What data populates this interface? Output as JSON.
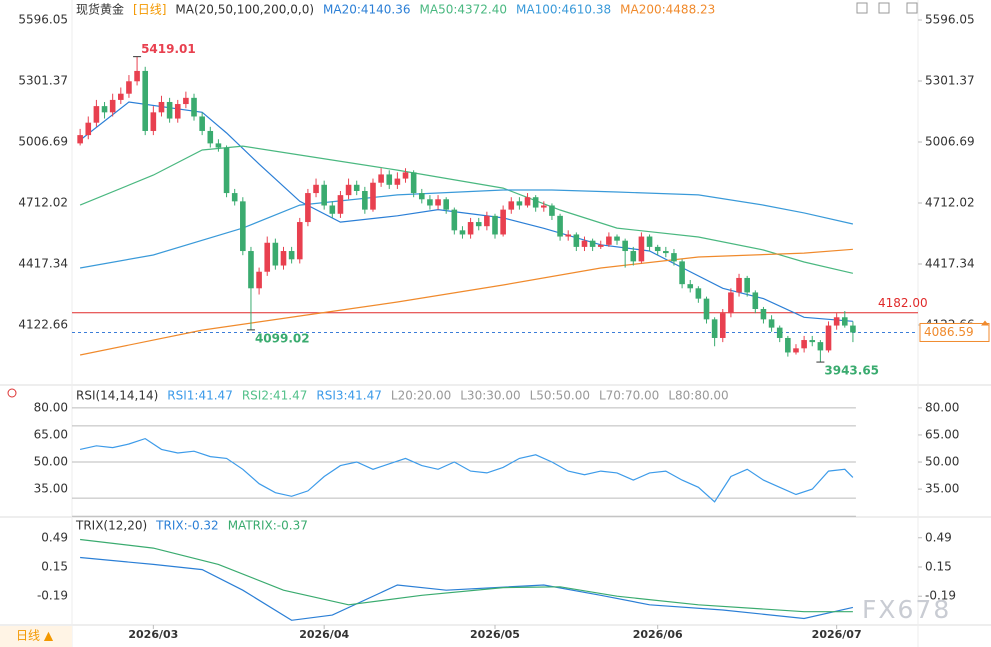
{
  "chart_data": [
    {
      "type": "candlestick",
      "title": "现货黄金",
      "period": "[日线]",
      "indicator": "MA(20,50,100,200,0,0)",
      "up_color": "#e8404f",
      "down_color": "#3aab6f",
      "xlim": [
        -1,
        103
      ],
      "xticks": [
        {
          "value": 9,
          "label": "2026/03"
        },
        {
          "value": 30,
          "label": "2026/04"
        },
        {
          "value": 51,
          "label": "2026/05"
        },
        {
          "value": 71,
          "label": "2026/06"
        },
        {
          "value": 93,
          "label": "2026/07"
        }
      ],
      "ylim": [
        3857,
        5654
      ],
      "yticks": [
        5596.05,
        5301.37,
        5006.69,
        4712.02,
        4417.34,
        4122.66
      ],
      "candles": [
        [
          5000,
          5070,
          4990,
          5040
        ],
        [
          5040,
          5130,
          5020,
          5100
        ],
        [
          5100,
          5210,
          5080,
          5180
        ],
        [
          5180,
          5200,
          5120,
          5150
        ],
        [
          5150,
          5240,
          5130,
          5210
        ],
        [
          5210,
          5270,
          5190,
          5240
        ],
        [
          5240,
          5330,
          5220,
          5300
        ],
        [
          5300,
          5419.01,
          5280,
          5350
        ],
        [
          5350,
          5370,
          5040,
          5060
        ],
        [
          5060,
          5180,
          5040,
          5150
        ],
        [
          5150,
          5230,
          5130,
          5200
        ],
        [
          5200,
          5220,
          5100,
          5120
        ],
        [
          5120,
          5210,
          5100,
          5190
        ],
        [
          5190,
          5250,
          5170,
          5220
        ],
        [
          5220,
          5240,
          5110,
          5130
        ],
        [
          5130,
          5150,
          5040,
          5060
        ],
        [
          5060,
          5080,
          4980,
          5000
        ],
        [
          5000,
          5020,
          4960,
          4980
        ],
        [
          4980,
          4990,
          4740,
          4760
        ],
        [
          4760,
          4780,
          4700,
          4720
        ],
        [
          4720,
          4740,
          4460,
          4480
        ],
        [
          4480,
          4500,
          4099.02,
          4300
        ],
        [
          4300,
          4400,
          4270,
          4380
        ],
        [
          4380,
          4550,
          4360,
          4520
        ],
        [
          4520,
          4540,
          4390,
          4410
        ],
        [
          4410,
          4500,
          4390,
          4480
        ],
        [
          4480,
          4500,
          4420,
          4440
        ],
        [
          4440,
          4640,
          4420,
          4620
        ],
        [
          4620,
          4780,
          4600,
          4760
        ],
        [
          4760,
          4830,
          4740,
          4800
        ],
        [
          4800,
          4820,
          4680,
          4700
        ],
        [
          4700,
          4720,
          4640,
          4660
        ],
        [
          4660,
          4770,
          4640,
          4750
        ],
        [
          4750,
          4830,
          4730,
          4800
        ],
        [
          4800,
          4820,
          4750,
          4770
        ],
        [
          4770,
          4790,
          4660,
          4680
        ],
        [
          4680,
          4830,
          4670,
          4810
        ],
        [
          4810,
          4880,
          4790,
          4850
        ],
        [
          4850,
          4870,
          4780,
          4800
        ],
        [
          4800,
          4860,
          4780,
          4830
        ],
        [
          4830,
          4880,
          4810,
          4860
        ],
        [
          4860,
          4870,
          4740,
          4760
        ],
        [
          4760,
          4780,
          4710,
          4730
        ],
        [
          4730,
          4750,
          4680,
          4700
        ],
        [
          4700,
          4750,
          4680,
          4730
        ],
        [
          4730,
          4740,
          4660,
          4680
        ],
        [
          4680,
          4690,
          4560,
          4580
        ],
        [
          4580,
          4600,
          4540,
          4560
        ],
        [
          4560,
          4640,
          4540,
          4620
        ],
        [
          4620,
          4640,
          4580,
          4600
        ],
        [
          4600,
          4670,
          4580,
          4650
        ],
        [
          4650,
          4660,
          4540,
          4560
        ],
        [
          4560,
          4700,
          4550,
          4680
        ],
        [
          4680,
          4740,
          4660,
          4720
        ],
        [
          4720,
          4740,
          4680,
          4700
        ],
        [
          4700,
          4760,
          4690,
          4740
        ],
        [
          4740,
          4750,
          4670,
          4690
        ],
        [
          4690,
          4720,
          4670,
          4700
        ],
        [
          4700,
          4710,
          4630,
          4650
        ],
        [
          4650,
          4660,
          4530,
          4550
        ],
        [
          4550,
          4580,
          4530,
          4560
        ],
        [
          4560,
          4570,
          4480,
          4500
        ],
        [
          4500,
          4550,
          4480,
          4530
        ],
        [
          4530,
          4540,
          4480,
          4500
        ],
        [
          4500,
          4530,
          4490,
          4510
        ],
        [
          4510,
          4570,
          4500,
          4550
        ],
        [
          4550,
          4560,
          4510,
          4530
        ],
        [
          4530,
          4540,
          4400,
          4480
        ],
        [
          4480,
          4500,
          4410,
          4430
        ],
        [
          4430,
          4570,
          4420,
          4550
        ],
        [
          4550,
          4560,
          4480,
          4500
        ],
        [
          4500,
          4510,
          4460,
          4480
        ],
        [
          4480,
          4500,
          4450,
          4470
        ],
        [
          4470,
          4490,
          4410,
          4430
        ],
        [
          4430,
          4440,
          4300,
          4320
        ],
        [
          4320,
          4340,
          4280,
          4300
        ],
        [
          4300,
          4310,
          4230,
          4250
        ],
        [
          4250,
          4260,
          4130,
          4150
        ],
        [
          4150,
          4160,
          4020,
          4060
        ],
        [
          4060,
          4200,
          4040,
          4180
        ],
        [
          4180,
          4300,
          4160,
          4280
        ],
        [
          4280,
          4370,
          4260,
          4350
        ],
        [
          4350,
          4360,
          4260,
          4280
        ],
        [
          4280,
          4290,
          4180,
          4200
        ],
        [
          4200,
          4210,
          4130,
          4150
        ],
        [
          4150,
          4170,
          4090,
          4110
        ],
        [
          4110,
          4120,
          4040,
          4060
        ],
        [
          4060,
          4070,
          3970,
          3990
        ],
        [
          3990,
          4030,
          3980,
          4010
        ],
        [
          4010,
          4070,
          3990,
          4050
        ],
        [
          4050,
          4070,
          4020,
          4040
        ],
        [
          4040,
          4050,
          3943.65,
          4000
        ],
        [
          4000,
          4140,
          3990,
          4120
        ],
        [
          4120,
          4180,
          4100,
          4160
        ],
        [
          4160,
          4190,
          4110,
          4120
        ],
        [
          4120,
          4140,
          4040,
          4086.59
        ]
      ],
      "series": [
        {
          "name": "MA20:4140.36",
          "color": "#2b7fd6",
          "x": [
            0,
            6,
            15,
            18,
            22,
            27,
            32,
            39,
            44,
            52,
            57,
            64,
            70,
            74,
            79,
            84,
            89,
            95
          ],
          "values": [
            5016,
            5200,
            5150,
            5050,
            4900,
            4720,
            4620,
            4650,
            4680,
            4640,
            4590,
            4510,
            4480,
            4400,
            4300,
            4250,
            4160,
            4140.36
          ]
        },
        {
          "name": "MA50:4372.40",
          "color": "#4ab880",
          "x": [
            0,
            9,
            15,
            20,
            27,
            39,
            52,
            59,
            66,
            76,
            84,
            89,
            95
          ],
          "values": [
            4702,
            4847,
            4968,
            4987,
            4944,
            4871,
            4784,
            4678,
            4591,
            4548,
            4485,
            4427,
            4372.4
          ]
        },
        {
          "name": "MA100:4610.38",
          "color": "#3a9ad9",
          "x": [
            0,
            9,
            20,
            27,
            39,
            52,
            58,
            66,
            76,
            84,
            89,
            95
          ],
          "values": [
            4398,
            4461,
            4591,
            4702,
            4751,
            4775,
            4775,
            4765,
            4751,
            4702,
            4664,
            4610.38
          ]
        },
        {
          "name": "MA200:4488.23",
          "color": "#f08a2c",
          "x": [
            0,
            15,
            27,
            39,
            52,
            64,
            76,
            89,
            95
          ],
          "values": [
            3978,
            4098,
            4166,
            4234,
            4316,
            4398,
            4451,
            4470,
            4488.23
          ]
        }
      ],
      "annotations": [
        {
          "label": "5419.01",
          "value": 5419.01,
          "x": 7
        },
        {
          "label": "4099.02",
          "value": 4099.02,
          "x": 21
        },
        {
          "label": "3943.65",
          "value": 3943.65,
          "x": 91
        }
      ],
      "reference_line": {
        "label": "4182.00",
        "value": 4182.0,
        "color": "#e02a2a"
      },
      "last_price": {
        "label": "4086.59",
        "value": 4086.59,
        "color": "#f08a2c"
      }
    },
    {
      "type": "line",
      "title": "RSI(14,14,14)",
      "ylim": [
        19,
        91
      ],
      "yticks": [
        {
          "value": 80,
          "label": "80.00"
        },
        {
          "value": 65,
          "label": "65.00"
        },
        {
          "value": 50,
          "label": "50.00"
        },
        {
          "value": 35,
          "label": "35.00"
        }
      ],
      "series": [
        {
          "name": "RSI1:41.47",
          "color": "#3d9be9",
          "x": [
            0,
            2,
            4,
            6,
            8,
            10,
            12,
            14,
            16,
            18,
            20,
            22,
            24,
            26,
            28,
            30,
            32,
            34,
            36,
            38,
            40,
            42,
            44,
            46,
            48,
            50,
            52,
            54,
            56,
            58,
            60,
            62,
            64,
            66,
            68,
            70,
            72,
            74,
            76,
            78,
            80,
            82,
            84,
            86,
            88,
            90,
            92,
            94,
            95
          ],
          "values": [
            57,
            59,
            58,
            60,
            63,
            57,
            55,
            56,
            53,
            52,
            46,
            38,
            33,
            31,
            34,
            42,
            48,
            50,
            46,
            49,
            52,
            48,
            46,
            50,
            45,
            44,
            47,
            52,
            54,
            50,
            45,
            43,
            45,
            44,
            40,
            44,
            45,
            40,
            36,
            28,
            42,
            46,
            40,
            36,
            32,
            35,
            45,
            46,
            41.47
          ]
        },
        {
          "name": "RSI2:41.47",
          "color": "#52c08a"
        },
        {
          "name": "RSI3:41.47",
          "color": "#3d9be9"
        }
      ],
      "levels": [
        {
          "value": 20,
          "label": "L20:20.00"
        },
        {
          "value": 30,
          "label": "L30:30.00"
        },
        {
          "value": 50,
          "label": "L50:50.00"
        },
        {
          "value": 70,
          "label": "L70:70.00"
        },
        {
          "value": 80,
          "label": "L80:80.00"
        }
      ]
    },
    {
      "type": "line",
      "title": "TRIX(12,20)",
      "ylim": [
        -0.56,
        0.72
      ],
      "yticks": [
        0.49,
        0.15,
        -0.19
      ],
      "series": [
        {
          "name": "TRIX:-0.32",
          "color": "#2b7fd6",
          "x": [
            0,
            9,
            15,
            20,
            26,
            31,
            39,
            45,
            57,
            64,
            70,
            79,
            89,
            95
          ],
          "values": [
            0.26,
            0.18,
            0.12,
            -0.12,
            -0.47,
            -0.41,
            -0.06,
            -0.12,
            -0.06,
            -0.18,
            -0.29,
            -0.35,
            -0.45,
            -0.32
          ]
        },
        {
          "name": "MATRIX:-0.37",
          "color": "#3aab6f",
          "x": [
            0,
            9,
            17,
            25,
            33,
            42,
            52,
            59,
            66,
            76,
            89,
            95
          ],
          "values": [
            0.47,
            0.37,
            0.18,
            -0.12,
            -0.29,
            -0.18,
            -0.09,
            -0.08,
            -0.19,
            -0.29,
            -0.37,
            -0.37
          ]
        }
      ]
    }
  ],
  "footer": {
    "period_button": "日线 ▲",
    "watermark": "FX678"
  }
}
